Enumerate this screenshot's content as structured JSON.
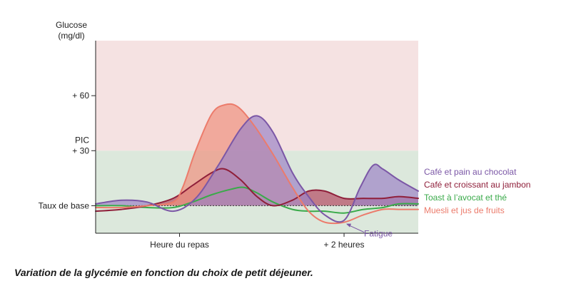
{
  "chart_data": {
    "type": "line",
    "caption": "Variation de la glycémie en fonction du choix de petit déjeuner.",
    "ylabel_lines": [
      "Glucose",
      "(mg/dl)"
    ],
    "ylim": [
      -15,
      90
    ],
    "xlim": [
      0,
      100
    ],
    "y_ticks": [
      {
        "value": 0,
        "lines": [
          "Taux de base"
        ]
      },
      {
        "value": 30,
        "lines": [
          "PIC",
          "+ 30"
        ]
      },
      {
        "value": 60,
        "lines": [
          "+ 60"
        ]
      }
    ],
    "x_ticks": [
      {
        "value": 26,
        "label": "Heure du repas"
      },
      {
        "value": 77,
        "label": "+ 2 heures"
      }
    ],
    "zones": [
      {
        "from": 30,
        "to": 90,
        "color": "#f5e2e2"
      },
      {
        "from": -15,
        "to": 30,
        "color": "#dce8dc"
      }
    ],
    "series": [
      {
        "name": "Café et pain au chocolat",
        "color": "#7b57a6",
        "fill": "#9c84c6",
        "x": [
          0,
          8,
          16,
          24,
          31,
          38,
          45,
          50,
          55,
          61,
          66,
          71,
          77,
          82,
          86,
          89,
          94,
          100
        ],
        "y": [
          1,
          3,
          2,
          -3,
          4,
          22,
          42,
          49,
          40,
          18,
          5,
          -5,
          -8,
          10,
          22,
          20,
          14,
          8
        ]
      },
      {
        "name": "Café et croissant au jambon",
        "color": "#8f1f3a",
        "fill": "#b34b63",
        "x": [
          0,
          8,
          16,
          24,
          30,
          36,
          40,
          45,
          50,
          55,
          61,
          66,
          71,
          77,
          83,
          89,
          94,
          100
        ],
        "y": [
          -3,
          -2,
          0,
          4,
          11,
          18,
          20,
          14,
          5,
          0,
          3,
          8,
          8,
          4,
          4,
          4,
          5,
          4
        ]
      },
      {
        "name": "Toast à l’avocat et thé",
        "color": "#3aaa4a",
        "fill": "#8fd28f",
        "x": [
          0,
          8,
          16,
          24,
          30,
          36,
          42,
          46,
          50,
          55,
          61,
          66,
          71,
          77,
          83,
          89,
          94,
          100
        ],
        "y": [
          0,
          0,
          -1,
          -1,
          2,
          6,
          9,
          10,
          7,
          2,
          -2,
          -3,
          -3,
          -4,
          -2,
          -1,
          1,
          1
        ]
      },
      {
        "name": "Muesli et jus de fruits",
        "color": "#ec7b6b",
        "fill": "#f0917f",
        "x": [
          0,
          8,
          16,
          24,
          27,
          31,
          36,
          40,
          44,
          49,
          55,
          61,
          66,
          71,
          77,
          83,
          89,
          94,
          100
        ],
        "y": [
          -1,
          -1,
          0,
          2,
          10,
          30,
          50,
          55,
          54,
          44,
          28,
          10,
          -3,
          -9,
          -9,
          -5,
          -2,
          -2,
          -2
        ]
      }
    ],
    "annotation": {
      "text": "Fatigue",
      "x": 77,
      "y": -9
    },
    "legend_position": "right",
    "grid": false
  }
}
